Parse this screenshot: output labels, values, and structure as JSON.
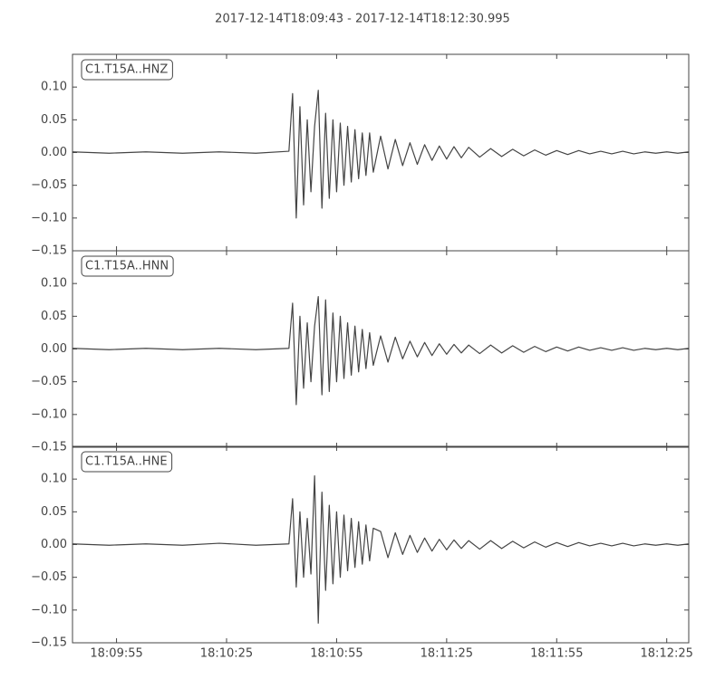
{
  "title": "2017-12-14T18:09:43  -  2017-12-14T18:12:30.995",
  "chart_data": [
    {
      "type": "line",
      "label": "C1.T15A..HNZ",
      "color": "#444444",
      "x": [
        "18:09:43",
        "18:09:53",
        "18:10:03",
        "18:10:13",
        "18:10:23",
        "18:10:33",
        "18:10:42",
        "18:10:43",
        "18:10:44",
        "18:10:45",
        "18:10:46",
        "18:10:47",
        "18:10:48",
        "18:10:49",
        "18:10:50",
        "18:10:51",
        "18:10:52",
        "18:10:53",
        "18:10:54",
        "18:10:55",
        "18:10:56",
        "18:10:57",
        "18:10:58",
        "18:10:59",
        "18:11:00",
        "18:11:01",
        "18:11:02",
        "18:11:03",
        "18:11:04",
        "18:11:05",
        "18:11:07",
        "18:11:09",
        "18:11:11",
        "18:11:13",
        "18:11:15",
        "18:11:17",
        "18:11:19",
        "18:11:21",
        "18:11:23",
        "18:11:25",
        "18:11:27",
        "18:11:29",
        "18:11:31",
        "18:11:34",
        "18:11:37",
        "18:11:40",
        "18:11:43",
        "18:11:46",
        "18:11:49",
        "18:11:52",
        "18:11:55",
        "18:11:58",
        "18:12:01",
        "18:12:04",
        "18:12:07",
        "18:12:10",
        "18:12:13",
        "18:12:16",
        "18:12:19",
        "18:12:22",
        "18:12:25",
        "18:12:28",
        "18:12:31"
      ],
      "values": [
        0.001,
        -0.001,
        0.001,
        -0.001,
        0.001,
        -0.001,
        0.002,
        0.09,
        -0.1,
        0.07,
        -0.08,
        0.05,
        -0.06,
        0.04,
        0.095,
        -0.085,
        0.06,
        -0.07,
        0.05,
        -0.06,
        0.045,
        -0.05,
        0.04,
        -0.045,
        0.035,
        -0.04,
        0.03,
        -0.035,
        0.03,
        -0.03,
        0.025,
        -0.025,
        0.02,
        -0.02,
        0.015,
        -0.018,
        0.012,
        -0.012,
        0.01,
        -0.01,
        0.009,
        -0.008,
        0.008,
        -0.007,
        0.006,
        -0.006,
        0.005,
        -0.005,
        0.004,
        -0.004,
        0.003,
        -0.003,
        0.003,
        -0.002,
        0.002,
        -0.002,
        0.002,
        -0.002,
        0.001,
        -0.001,
        0.001,
        -0.001,
        0.001
      ],
      "xlim": [
        "18:09:43",
        "18:12:31"
      ],
      "xticks": [
        "18:09:55",
        "18:10:25",
        "18:10:55",
        "18:11:25",
        "18:11:55",
        "18:12:25"
      ],
      "ylim": [
        -0.15,
        0.15
      ],
      "yticks": [
        {
          "value": 0.1,
          "label": "0.10"
        },
        {
          "value": 0.05,
          "label": "0.05"
        },
        {
          "value": 0,
          "label": "0.00"
        },
        {
          "value": -0.05,
          "label": "−0.05"
        },
        {
          "value": -0.1,
          "label": "−0.10"
        },
        {
          "value": -0.15,
          "label": "−0.15"
        }
      ]
    },
    {
      "type": "line",
      "label": "C1.T15A..HNN",
      "color": "#444444",
      "x": [
        "18:09:43",
        "18:09:53",
        "18:10:03",
        "18:10:13",
        "18:10:23",
        "18:10:33",
        "18:10:42",
        "18:10:43",
        "18:10:44",
        "18:10:45",
        "18:10:46",
        "18:10:47",
        "18:10:48",
        "18:10:49",
        "18:10:50",
        "18:10:51",
        "18:10:52",
        "18:10:53",
        "18:10:54",
        "18:10:55",
        "18:10:56",
        "18:10:57",
        "18:10:58",
        "18:10:59",
        "18:11:00",
        "18:11:01",
        "18:11:02",
        "18:11:03",
        "18:11:04",
        "18:11:05",
        "18:11:07",
        "18:11:09",
        "18:11:11",
        "18:11:13",
        "18:11:15",
        "18:11:17",
        "18:11:19",
        "18:11:21",
        "18:11:23",
        "18:11:25",
        "18:11:27",
        "18:11:29",
        "18:11:31",
        "18:11:34",
        "18:11:37",
        "18:11:40",
        "18:11:43",
        "18:11:46",
        "18:11:49",
        "18:11:52",
        "18:11:55",
        "18:11:58",
        "18:12:01",
        "18:12:04",
        "18:12:07",
        "18:12:10",
        "18:12:13",
        "18:12:16",
        "18:12:19",
        "18:12:22",
        "18:12:25",
        "18:12:28",
        "18:12:31"
      ],
      "values": [
        0.001,
        -0.001,
        0.001,
        -0.001,
        0.001,
        -0.001,
        0.001,
        0.07,
        -0.085,
        0.05,
        -0.06,
        0.04,
        -0.05,
        0.035,
        0.08,
        -0.07,
        0.075,
        -0.065,
        0.055,
        -0.05,
        0.05,
        -0.045,
        0.04,
        -0.04,
        0.035,
        -0.035,
        0.03,
        -0.03,
        0.025,
        -0.025,
        0.02,
        -0.02,
        0.018,
        -0.015,
        0.012,
        -0.012,
        0.01,
        -0.01,
        0.008,
        -0.008,
        0.007,
        -0.006,
        0.006,
        -0.007,
        0.006,
        -0.006,
        0.005,
        -0.005,
        0.004,
        -0.004,
        0.003,
        -0.003,
        0.003,
        -0.002,
        0.002,
        -0.002,
        0.002,
        -0.002,
        0.001,
        -0.001,
        0.001,
        -0.001,
        0.001
      ],
      "xlim": [
        "18:09:43",
        "18:12:31"
      ],
      "xticks": [
        "18:09:55",
        "18:10:25",
        "18:10:55",
        "18:11:25",
        "18:11:55",
        "18:12:25"
      ],
      "ylim": [
        -0.15,
        0.15
      ],
      "yticks": [
        {
          "value": 0.1,
          "label": "0.10"
        },
        {
          "value": 0.05,
          "label": "0.05"
        },
        {
          "value": 0,
          "label": "0.00"
        },
        {
          "value": -0.05,
          "label": "−0.05"
        },
        {
          "value": -0.1,
          "label": "−0.10"
        },
        {
          "value": -0.15,
          "label": "−0.15"
        }
      ]
    },
    {
      "type": "line",
      "label": "C1.T15A..HNE",
      "color": "#444444",
      "x": [
        "18:09:43",
        "18:09:53",
        "18:10:03",
        "18:10:13",
        "18:10:23",
        "18:10:33",
        "18:10:42",
        "18:10:43",
        "18:10:44",
        "18:10:45",
        "18:10:46",
        "18:10:47",
        "18:10:48",
        "18:10:49",
        "18:10:50",
        "18:10:51",
        "18:10:52",
        "18:10:53",
        "18:10:54",
        "18:10:55",
        "18:10:56",
        "18:10:57",
        "18:10:58",
        "18:10:59",
        "18:11:00",
        "18:11:01",
        "18:11:02",
        "18:11:03",
        "18:11:04",
        "18:11:05",
        "18:11:07",
        "18:11:09",
        "18:11:11",
        "18:11:13",
        "18:11:15",
        "18:11:17",
        "18:11:19",
        "18:11:21",
        "18:11:23",
        "18:11:25",
        "18:11:27",
        "18:11:29",
        "18:11:31",
        "18:11:34",
        "18:11:37",
        "18:11:40",
        "18:11:43",
        "18:11:46",
        "18:11:49",
        "18:11:52",
        "18:11:55",
        "18:11:58",
        "18:12:01",
        "18:12:04",
        "18:12:07",
        "18:12:10",
        "18:12:13",
        "18:12:16",
        "18:12:19",
        "18:12:22",
        "18:12:25",
        "18:12:28",
        "18:12:31"
      ],
      "values": [
        0.001,
        -0.001,
        0.001,
        -0.001,
        0.002,
        -0.001,
        0.001,
        0.07,
        -0.065,
        0.05,
        -0.05,
        0.04,
        -0.045,
        0.105,
        -0.12,
        0.08,
        -0.07,
        0.06,
        -0.06,
        0.05,
        -0.05,
        0.045,
        -0.04,
        0.04,
        -0.035,
        0.035,
        -0.03,
        0.03,
        -0.025,
        0.025,
        0.02,
        -0.02,
        0.018,
        -0.015,
        0.014,
        -0.012,
        0.01,
        -0.01,
        0.008,
        -0.008,
        0.007,
        -0.006,
        0.006,
        -0.007,
        0.006,
        -0.006,
        0.005,
        -0.005,
        0.004,
        -0.004,
        0.003,
        -0.003,
        0.003,
        -0.002,
        0.002,
        -0.002,
        0.002,
        -0.002,
        0.001,
        -0.001,
        0.001,
        -0.001,
        0.001
      ],
      "xlim": [
        "18:09:43",
        "18:12:31"
      ],
      "xticks": [
        "18:09:55",
        "18:10:25",
        "18:10:55",
        "18:11:25",
        "18:11:55",
        "18:12:25"
      ],
      "ylim": [
        -0.15,
        0.15
      ],
      "yticks": [
        {
          "value": 0.1,
          "label": "0.10"
        },
        {
          "value": 0.05,
          "label": "0.05"
        },
        {
          "value": 0,
          "label": "0.00"
        },
        {
          "value": -0.05,
          "label": "−0.05"
        },
        {
          "value": -0.1,
          "label": "−0.10"
        },
        {
          "value": -0.15,
          "label": "−0.15"
        }
      ]
    }
  ]
}
